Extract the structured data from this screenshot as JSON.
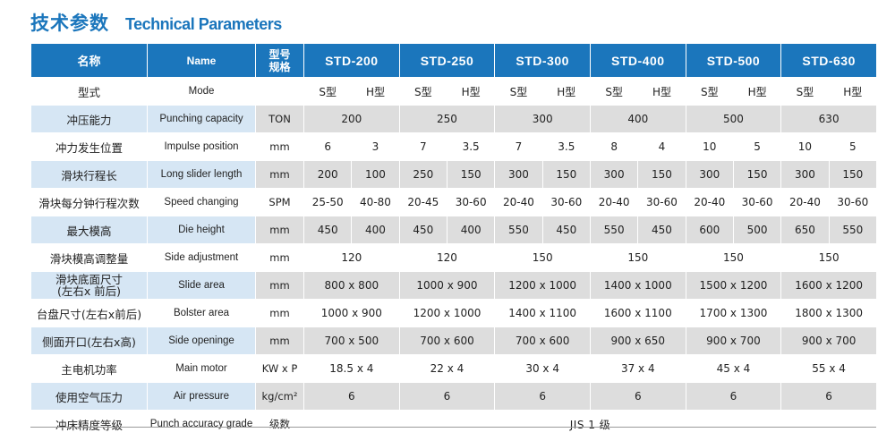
{
  "title": {
    "cn": "技术参数",
    "en": "Technical Parameters"
  },
  "header": {
    "name_cn": "名称",
    "name_en": "Name",
    "unit_line1": "型号",
    "unit_line2": "规格",
    "models": [
      "STD-200",
      "STD-250",
      "STD-300",
      "STD-400",
      "STD-500",
      "STD-630"
    ]
  },
  "rows": [
    {
      "cn": "型式",
      "en": "Mode",
      "unit": "",
      "split": true,
      "values": [
        "S型",
        "H型",
        "S型",
        "H型",
        "S型",
        "H型",
        "S型",
        "H型",
        "S型",
        "H型",
        "S型",
        "H型"
      ]
    },
    {
      "cn": "冲压能力",
      "en": "Punching capacity",
      "unit": "TON",
      "split": false,
      "values": [
        "200",
        "250",
        "300",
        "400",
        "500",
        "630"
      ]
    },
    {
      "cn": "冲力发生位置",
      "en": "Impulse position",
      "unit": "mm",
      "split": true,
      "values": [
        "6",
        "3",
        "7",
        "3.5",
        "7",
        "3.5",
        "8",
        "4",
        "10",
        "5",
        "10",
        "5"
      ]
    },
    {
      "cn": "滑块行程长",
      "en": "Long slider length",
      "unit": "mm",
      "split": true,
      "values": [
        "200",
        "100",
        "250",
        "150",
        "300",
        "150",
        "300",
        "150",
        "300",
        "150",
        "300",
        "150"
      ]
    },
    {
      "cn": "滑块每分钟行程次数",
      "en": "Speed changing",
      "unit": "SPM",
      "split": true,
      "values": [
        "25-50",
        "40-80",
        "20-45",
        "30-60",
        "20-40",
        "30-60",
        "20-40",
        "30-60",
        "20-40",
        "30-60",
        "20-40",
        "30-60"
      ]
    },
    {
      "cn": "最大模高",
      "en": "Die height",
      "unit": "mm",
      "split": true,
      "values": [
        "450",
        "400",
        "450",
        "400",
        "550",
        "450",
        "550",
        "450",
        "600",
        "500",
        "650",
        "550"
      ]
    },
    {
      "cn": "滑块模高调整量",
      "en": "Side adjustment",
      "unit": "mm",
      "split": false,
      "values": [
        "120",
        "120",
        "150",
        "150",
        "150",
        "150"
      ]
    },
    {
      "cn": "滑块底面尺寸\n(左右x 前后)",
      "en": "Slide area",
      "unit": "mm",
      "split": false,
      "values": [
        "800 x 800",
        "1000 x 900",
        "1200 x 1000",
        "1400 x 1000",
        "1500 x 1200",
        "1600 x 1200"
      ]
    },
    {
      "cn": "台盘尺寸(左右x前后)",
      "en": "Bolster area",
      "unit": "mm",
      "split": false,
      "values": [
        "1000 x 900",
        "1200 x 1000",
        "1400 x 1100",
        "1600 x 1100",
        "1700 x 1300",
        "1800 x 1300"
      ]
    },
    {
      "cn": "侧面开口(左右x高)",
      "en": "Side openinge",
      "unit": "mm",
      "split": false,
      "values": [
        "700 x 500",
        "700 x 600",
        "700 x 600",
        "900 x 650",
        "900 x 700",
        "900 x 700"
      ]
    },
    {
      "cn": "主电机功率",
      "en": "Main motor",
      "unit": "KW x P",
      "split": false,
      "values": [
        "18.5 x 4",
        "22 x 4",
        "30 x 4",
        "37 x 4",
        "45 x 4",
        "55 x 4"
      ]
    },
    {
      "cn": "使用空气压力",
      "en": "Air pressure",
      "unit": "kg/cm²",
      "split": false,
      "values": [
        "6",
        "6",
        "6",
        "6",
        "6",
        "6"
      ]
    },
    {
      "cn": "冲床精度等级",
      "en": "Punch accuracy grade",
      "unit": "级数",
      "split": "all",
      "values": [
        "JIS 1 级"
      ]
    }
  ]
}
